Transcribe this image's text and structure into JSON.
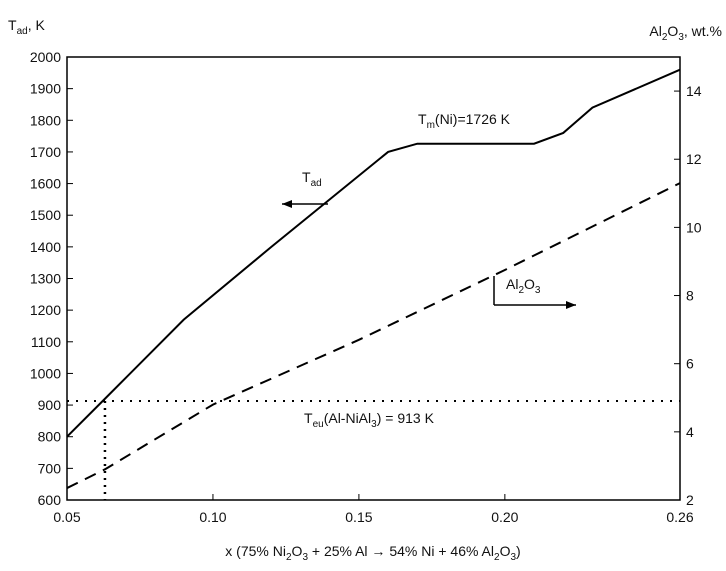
{
  "chart_data": {
    "type": "line",
    "y_label": [
      "T",
      "ad",
      ", K"
    ],
    "y2_label": [
      "Al",
      "2",
      "O",
      "3",
      ", wt.%"
    ],
    "x_label": [
      "x (75% Ni",
      "2",
      "O",
      "3",
      " + 25% Al → 54% Ni + 46% Al",
      "2",
      "O",
      "3",
      ")"
    ],
    "series": [
      {
        "name": [
          "T",
          "ad"
        ],
        "color": "#000000",
        "dash": false,
        "x": [
          0.05,
          0.063,
          0.09,
          0.12,
          0.16,
          0.17,
          0.21,
          0.22,
          0.23,
          0.26
        ],
        "values": [
          800,
          920,
          1170,
          1400,
          1700,
          1726,
          1726,
          1760,
          1840,
          1960
        ]
      },
      {
        "name": [
          "Al",
          "2",
          "O",
          "3"
        ],
        "color": "#000000",
        "dash": true,
        "axis": "y2",
        "x": [
          0.05,
          0.063,
          0.1,
          0.15,
          0.2,
          0.26
        ],
        "values": [
          2.35,
          2.9,
          4.8,
          6.7,
          8.75,
          11.3
        ]
      }
    ],
    "annotations": [
      {
        "text": [
          "T",
          "m",
          "(Ni)=1726 K"
        ]
      },
      {
        "text": [
          "T",
          "eu",
          "(Al-NiAl",
          "3",
          ") = 913 K"
        ]
      }
    ],
    "hline": 913,
    "vline": 0.063,
    "xlim": [
      0.05,
      0.26
    ],
    "xticks": [
      {
        "value": 0.05,
        "label": "0.05"
      },
      {
        "value": 0.1,
        "label": "0.10"
      },
      {
        "value": 0.15,
        "label": "0.15"
      },
      {
        "value": 0.2,
        "label": "0.20"
      },
      {
        "value": 0.26,
        "label": "0.26"
      }
    ],
    "ylim": [
      600,
      2000
    ],
    "yticks": [
      600,
      700,
      800,
      900,
      1000,
      1100,
      1200,
      1300,
      1400,
      1500,
      1600,
      1700,
      1800,
      1900,
      2000
    ],
    "y2lim": [
      2,
      15
    ],
    "y2ticks": [
      2,
      4,
      6,
      8,
      10,
      12,
      14
    ]
  }
}
